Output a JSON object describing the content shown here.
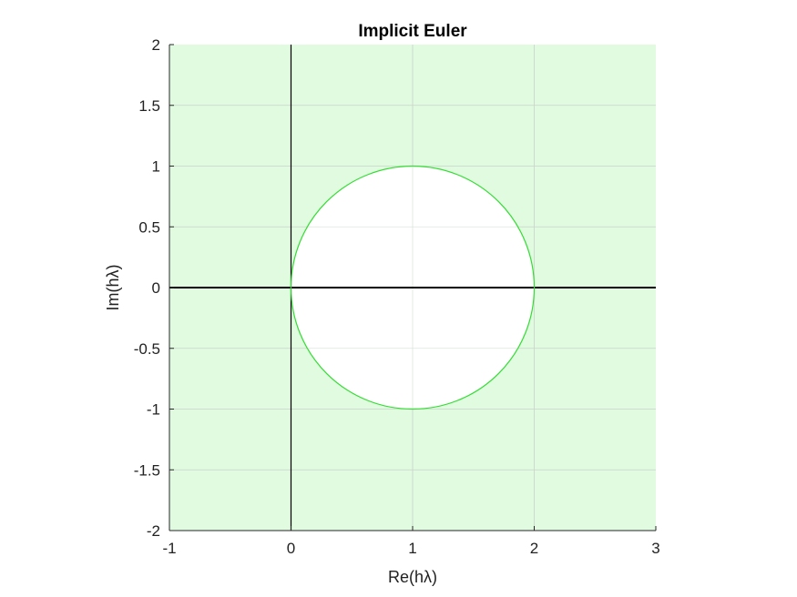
{
  "chart_data": {
    "type": "region",
    "title": "Implicit Euler",
    "xlabel": "Re(hλ)",
    "ylabel": "Im(hλ)",
    "xlim": [
      -1,
      3
    ],
    "ylim": [
      -2,
      2
    ],
    "xticks": [
      -1,
      0,
      1,
      2,
      3
    ],
    "xtick_labels": [
      "-1",
      "0",
      "1",
      "2",
      "3"
    ],
    "yticks": [
      -2,
      -1.5,
      -1,
      -0.5,
      0,
      0.5,
      1,
      1.5,
      2
    ],
    "ytick_labels": [
      "-2",
      "-1.5",
      "-1",
      "-0.5",
      "0",
      "0.5",
      "1",
      "1.5",
      "2"
    ],
    "grid": true,
    "stable_region": {
      "description_source": "shaded area outside the circle |1 - hλ| = 1",
      "fill_color": "#e0fbe0",
      "boundary_color": "#33dd33"
    },
    "boundary_circle": {
      "center": [
        1,
        0
      ],
      "radius": 1
    },
    "reference_axes": {
      "real_axis_y": 0,
      "imag_axis_x": 0,
      "color": "#000000"
    }
  }
}
